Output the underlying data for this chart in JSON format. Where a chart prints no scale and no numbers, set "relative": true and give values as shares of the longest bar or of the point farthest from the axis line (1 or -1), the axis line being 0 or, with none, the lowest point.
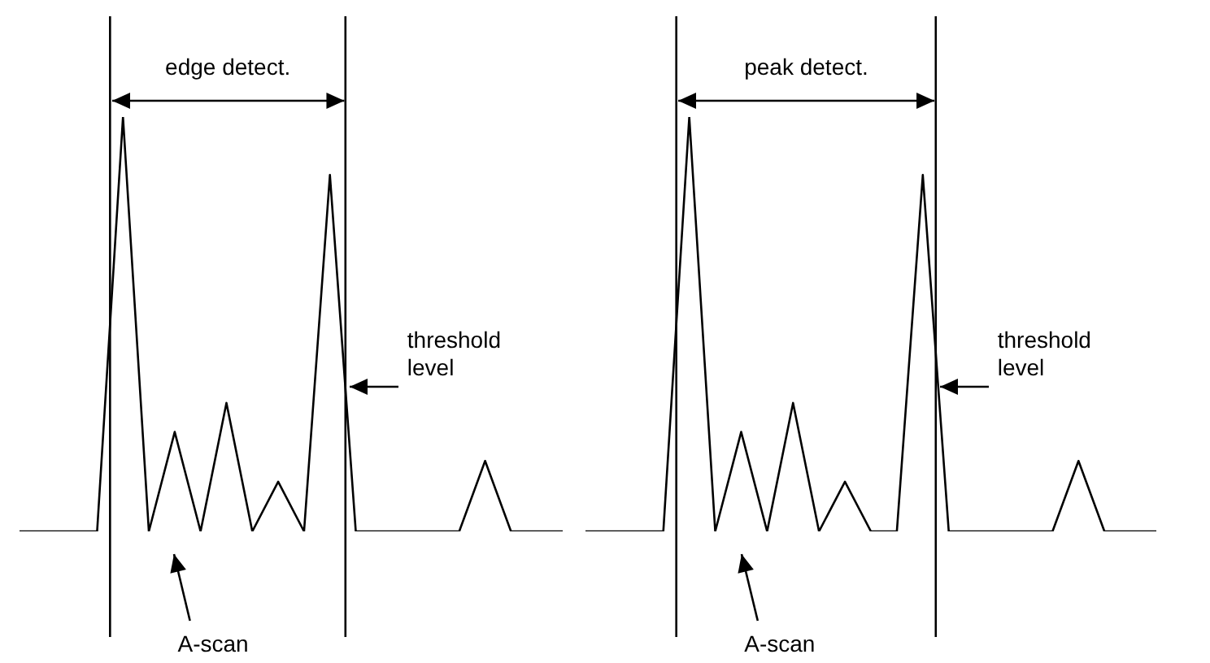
{
  "chart_data": [
    {
      "type": "line",
      "relative": true,
      "categories": [
        null,
        null,
        null,
        null,
        null,
        null,
        null,
        null,
        null,
        null,
        null,
        null,
        null,
        null,
        null,
        null,
        null,
        null,
        null,
        null,
        null,
        null
      ],
      "values": [
        0,
        0,
        0,
        0,
        1,
        0,
        0.24,
        0,
        0.31,
        0,
        0.12,
        0,
        0.86,
        0,
        0,
        0,
        0,
        0,
        0.17,
        0,
        0,
        0
      ],
      "color": "#000000",
      "annotations": [
        "edge detect.",
        "threshold level",
        "A-scan"
      ],
      "legend": false,
      "marker": "none"
    },
    {
      "type": "line",
      "relative": true,
      "categories": [
        null,
        null,
        null,
        null,
        null,
        null,
        null,
        null,
        null,
        null,
        null,
        null,
        null,
        null,
        null,
        null,
        null,
        null,
        null,
        null,
        null,
        null,
        null
      ],
      "values": [
        0,
        0,
        0,
        0,
        1,
        0,
        0.24,
        0,
        0.31,
        0,
        0.12,
        0,
        0,
        0.86,
        0,
        0,
        0,
        0,
        0,
        0.17,
        0,
        0,
        0
      ],
      "color": "#000000",
      "annotations": [
        "peak detect.",
        "threshold level",
        "A-scan"
      ],
      "legend": false,
      "marker": "none"
    }
  ]
}
